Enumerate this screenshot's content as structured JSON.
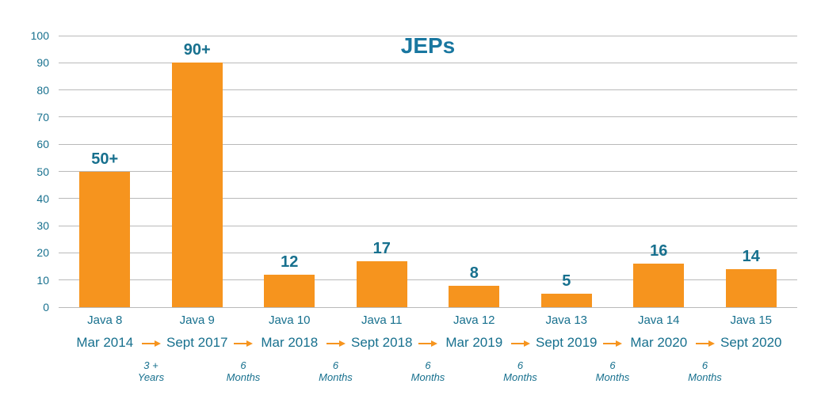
{
  "colors": {
    "bar": "#F6941E",
    "arrow": "#F6941E",
    "teal_text": "#17708E",
    "title_text": "#1977A0",
    "gridline": "#B9B9B9",
    "background": "#FFFFFF"
  },
  "chart_data": {
    "type": "bar",
    "title": "JEPs",
    "xlabel": "",
    "ylabel": "",
    "categories": [
      "Java 8",
      "Java 9",
      "Java 10",
      "Java 11",
      "Java 12",
      "Java 13",
      "Java 14",
      "Java 15"
    ],
    "values": [
      50,
      90,
      12,
      17,
      8,
      5,
      16,
      14
    ],
    "value_labels": [
      "50+",
      "90+",
      "12",
      "17",
      "8",
      "5",
      "16",
      "14"
    ],
    "release_dates": [
      "Mar 2014",
      "Sept 2017",
      "Mar 2018",
      "Sept 2018",
      "Mar 2019",
      "Sept 2019",
      "Mar 2020",
      "Sept 2020"
    ],
    "intervals": [
      {
        "line1": "3 +",
        "line2": "Years"
      },
      {
        "line1": "6",
        "line2": "Months"
      },
      {
        "line1": "6",
        "line2": "Months"
      },
      {
        "line1": "6",
        "line2": "Months"
      },
      {
        "line1": "6",
        "line2": "Months"
      },
      {
        "line1": "6",
        "line2": "Months"
      },
      {
        "line1": "6",
        "line2": "Months"
      }
    ],
    "ylim": [
      0,
      100
    ],
    "yticks": [
      0,
      10,
      20,
      30,
      40,
      50,
      60,
      70,
      80,
      90,
      100
    ],
    "grid": true,
    "legend": "none"
  }
}
